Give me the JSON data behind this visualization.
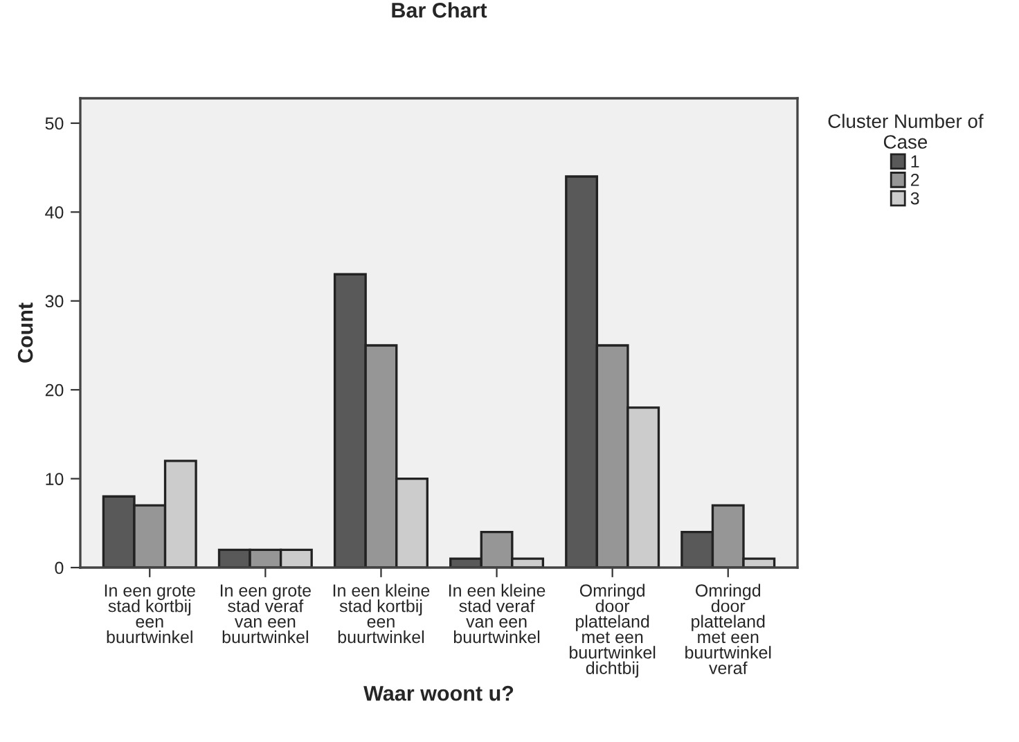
{
  "chart_data": {
    "type": "bar",
    "title": "Bar Chart",
    "xlabel": "Waar woont u?",
    "ylabel": "Count",
    "legend_title": "Cluster Number of\nCase",
    "categories": [
      "In een grote\nstad kortbij\neen\nbuurtwinkel",
      "In een grote\nstad veraf\nvan een\nbuurtwinkel",
      "In een kleine\nstad kortbij\neen\nbuurtwinkel",
      "In een kleine\nstad veraf\nvan een\nbuurtwinkel",
      "Omringd\ndoor\nplatteland\nmet een\nbuurtwinkel\ndichtbij",
      "Omringd\ndoor\nplatteland\nmet een\nbuurtwinkel\nveraf"
    ],
    "series": [
      {
        "name": "1",
        "color": "#595959",
        "values": [
          8,
          2,
          33,
          1,
          44,
          4
        ]
      },
      {
        "name": "2",
        "color": "#969696",
        "values": [
          7,
          2,
          25,
          4,
          25,
          7
        ]
      },
      {
        "name": "3",
        "color": "#cccccc",
        "values": [
          12,
          2,
          10,
          1,
          18,
          1
        ]
      }
    ],
    "ylim": [
      0,
      52.8
    ],
    "yticks": [
      0,
      10,
      20,
      30,
      40,
      50
    ],
    "grid": false,
    "legend": "right"
  }
}
